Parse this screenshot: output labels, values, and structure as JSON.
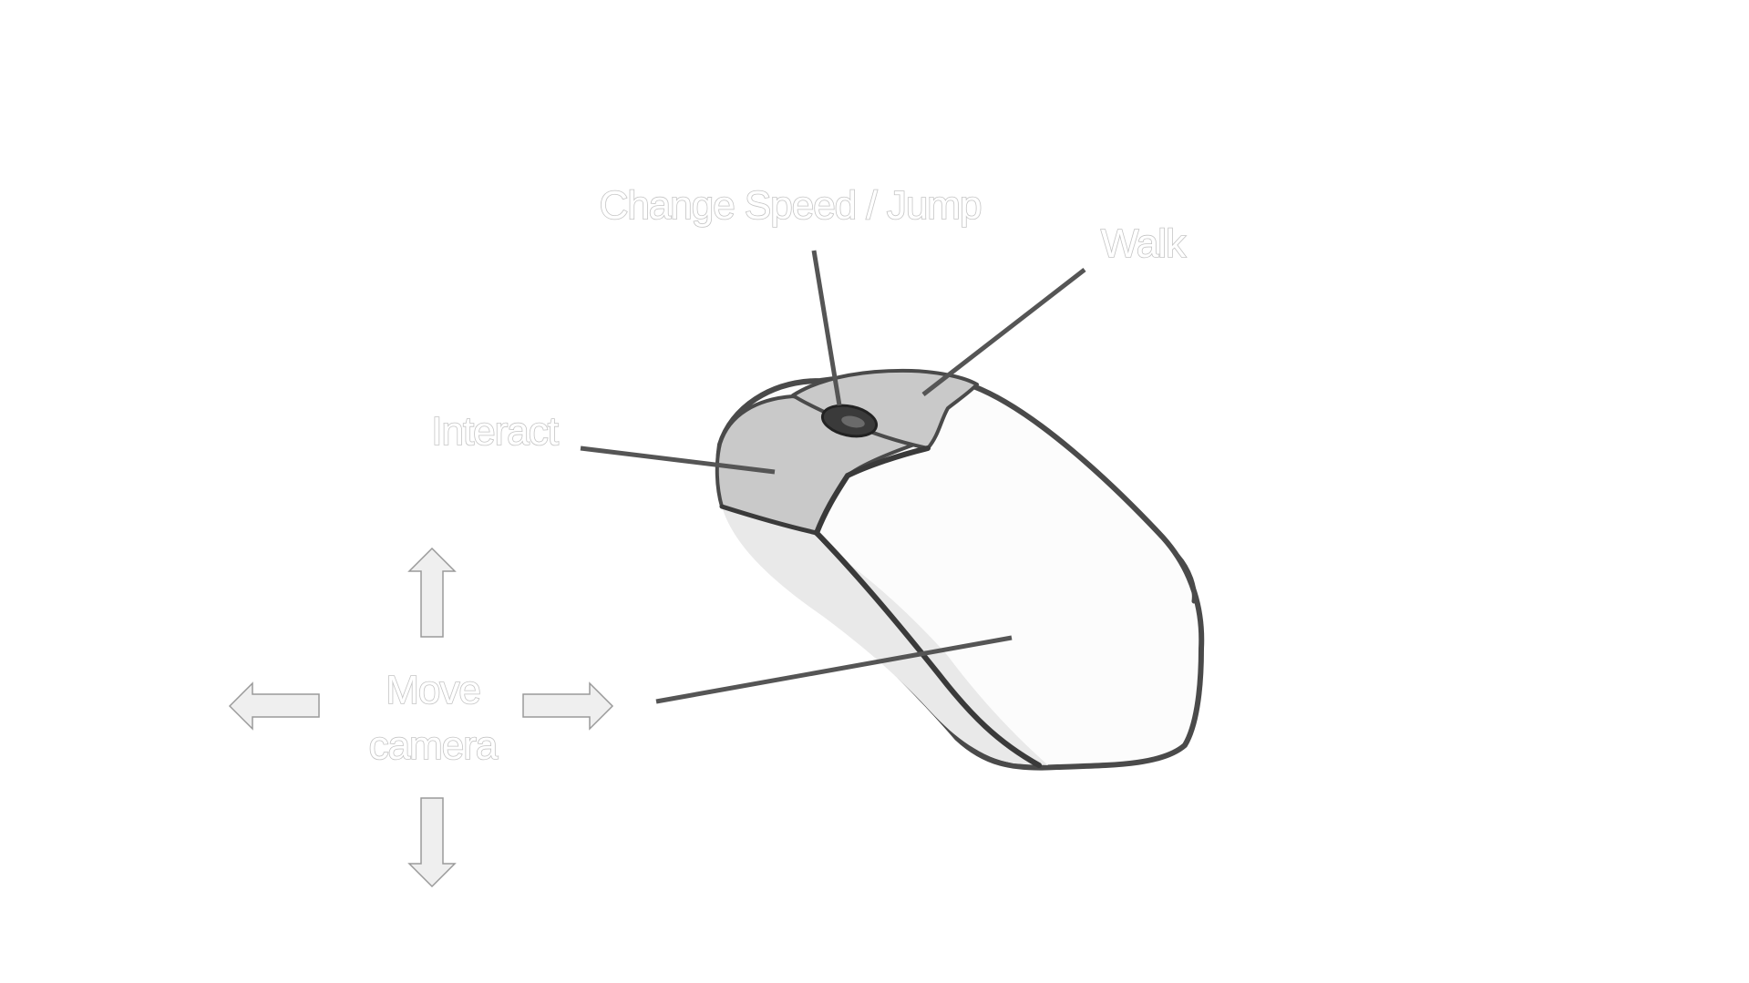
{
  "labels": {
    "change_speed_jump": "Change Speed / Jump",
    "walk": "Walk",
    "interact": "Interact",
    "move_camera_line1": "Move",
    "move_camera_line2": "camera"
  },
  "icons": {
    "mouse": "computer-mouse-icon",
    "arrows": [
      "arrow-up-icon",
      "arrow-down-icon",
      "arrow-left-icon",
      "arrow-right-icon"
    ]
  },
  "colors": {
    "background": "#ffffff",
    "mouse_body": "#fcfcfc",
    "mouse_buttons": "#c8c8c8",
    "mouse_outline": "#4a4a4a",
    "leader_lines": "#555555",
    "arrow_fill": "#efefef",
    "arrow_stroke": "#9a9a9a",
    "label_outline": "#c4c4c4"
  }
}
